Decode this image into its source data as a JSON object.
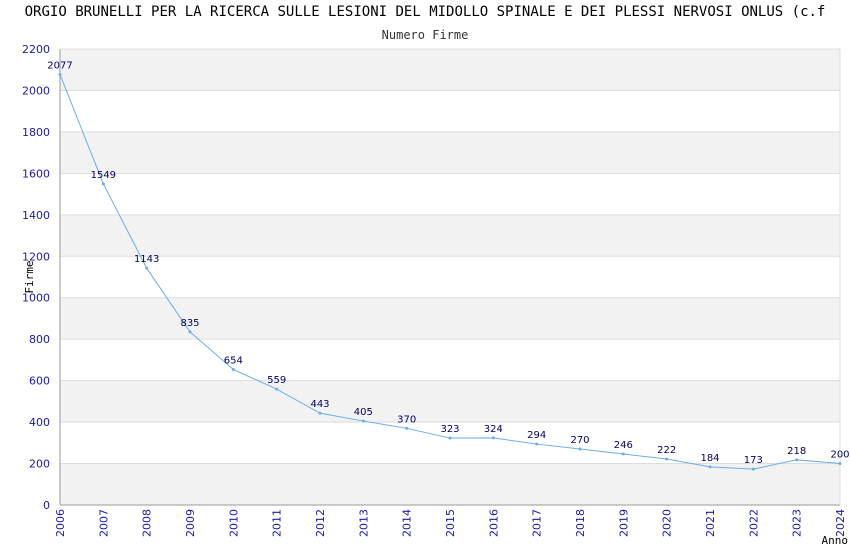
{
  "title": "ORGIO BRUNELLI PER LA RICERCA SULLE LESIONI DEL MIDOLLO SPINALE E DEI PLESSI NERVOSI ONLUS (c.f",
  "subtitle": "Numero Firme",
  "colors": {
    "line": "#6aaee8",
    "band": "#f2f2f2",
    "grid": "#dddddd",
    "tick_text": "#1a1aa6",
    "label_text": "#000066"
  },
  "chart_data": {
    "type": "line",
    "title": "ORGIO BRUNELLI PER LA RICERCA SULLE LESIONI DEL MIDOLLO SPINALE E DEI PLESSI NERVOSI ONLUS (c.f",
    "subtitle": "Numero Firme",
    "xlabel": "Anno",
    "ylabel": "Firme",
    "x": [
      "2006",
      "2007",
      "2008",
      "2009",
      "2010",
      "2011",
      "2012",
      "2013",
      "2014",
      "2015",
      "2016",
      "2017",
      "2018",
      "2019",
      "2020",
      "2021",
      "2022",
      "2023",
      "2024"
    ],
    "values": [
      2077,
      1549,
      1143,
      835,
      654,
      559,
      443,
      405,
      370,
      323,
      324,
      294,
      270,
      246,
      222,
      184,
      173,
      218,
      200
    ],
    "data_labels": [
      "2077",
      "1549",
      "1143",
      "835",
      "654",
      "559",
      "443",
      "405",
      "370",
      "323",
      "324",
      "294",
      "270",
      "246",
      "222",
      "184",
      "173",
      "218",
      "200"
    ],
    "ylim": [
      0,
      2200
    ],
    "yticks": [
      0,
      200,
      400,
      600,
      800,
      1000,
      1200,
      1400,
      1600,
      1800,
      2000,
      2200
    ],
    "grid": true,
    "alternating_bands": true
  }
}
